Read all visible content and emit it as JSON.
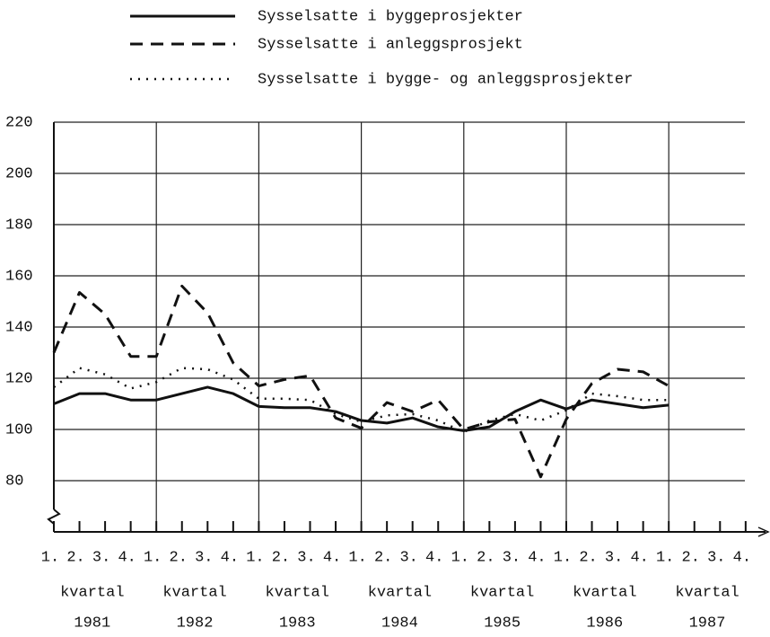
{
  "chart_data": {
    "type": "line",
    "categories": [
      "1.",
      "2.",
      "3.",
      "4.",
      "1.",
      "2.",
      "3.",
      "4.",
      "1.",
      "2.",
      "3.",
      "4.",
      "1.",
      "2.",
      "3.",
      "4.",
      "1.",
      "2.",
      "3.",
      "4.",
      "1.",
      "2.",
      "3.",
      "4.",
      "1.",
      "2.",
      "3.",
      "4."
    ],
    "period_labels": [
      "kvartal",
      "kvartal",
      "kvartal",
      "kvartal",
      "kvartal",
      "kvartal",
      "kvartal"
    ],
    "years": [
      "1981",
      "1982",
      "1983",
      "1984",
      "1985",
      "1986",
      "1987"
    ],
    "series": [
      {
        "name": "Sysselsatte i byggeprosjekter",
        "color": "#111",
        "dash": "solid",
        "values": [
          110,
          114,
          114,
          111.5,
          111.5,
          114,
          116.5,
          114,
          109,
          108.5,
          108.5,
          107,
          103.5,
          102.5,
          104.5,
          101,
          99.5,
          101,
          107,
          111.5,
          108,
          111.5,
          110,
          108.5,
          109.5,
          null,
          null,
          null
        ]
      },
      {
        "name": "Sysselsatte i anleggsprosjekt",
        "color": "#111",
        "dash": "dashed",
        "values": [
          130,
          153.5,
          145,
          128.5,
          128.5,
          156,
          145.5,
          126,
          117,
          119.5,
          121,
          104.5,
          100.5,
          110.5,
          107,
          111.5,
          100,
          103,
          104,
          81.5,
          104,
          118,
          123.5,
          122.5,
          117,
          null,
          null,
          null
        ]
      },
      {
        "name": "Sysselsatte i bygge- og anleggsprosjekter",
        "color": "#111",
        "dash": "dotted",
        "values": [
          116.5,
          124,
          121.5,
          116,
          118.5,
          124,
          123.5,
          119.5,
          112,
          112,
          111.5,
          106,
          103,
          105.5,
          106,
          103.5,
          99,
          103.5,
          106,
          103.5,
          107.5,
          114,
          113,
          111.5,
          111.5,
          null,
          null,
          null
        ]
      }
    ],
    "ylim": [
      60,
      220
    ],
    "yticks": [
      80,
      100,
      120,
      140,
      160,
      180,
      200,
      220
    ],
    "grid": true
  }
}
